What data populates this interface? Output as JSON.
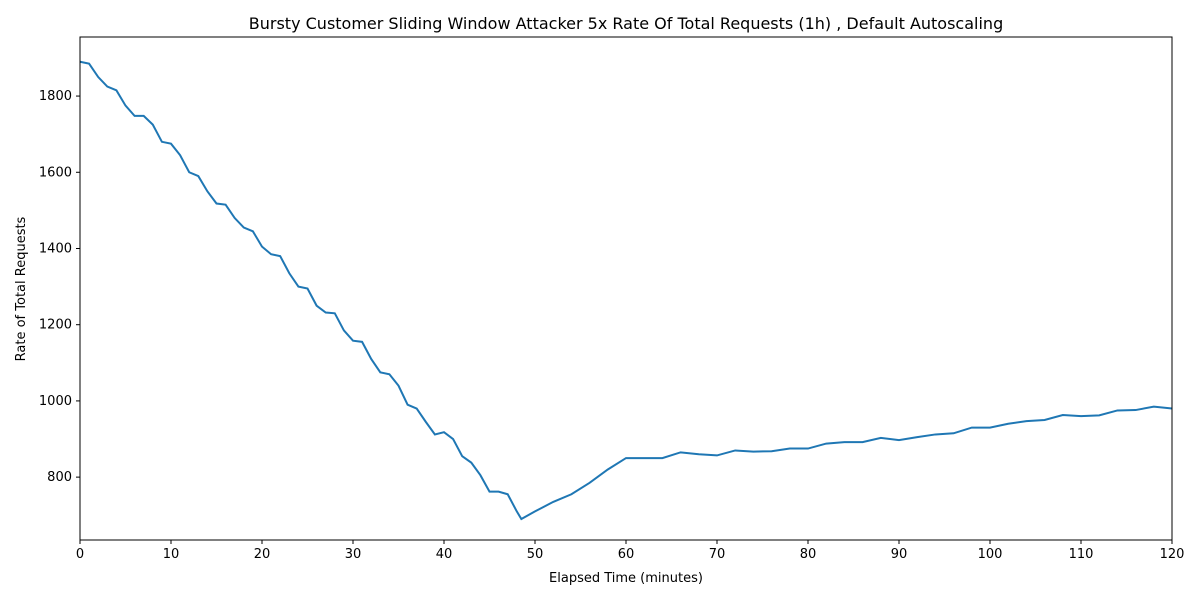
{
  "chart_data": {
    "type": "line",
    "title": "Bursty Customer Sliding Window Attacker 5x Rate Of Total Requests (1h) , Default Autoscaling",
    "x_label": "Elapsed Time (minutes)",
    "y_label": "Rate of Total Requests",
    "x": [
      0,
      1,
      2,
      3,
      4,
      5,
      6,
      7,
      8,
      9,
      10,
      11,
      12,
      13,
      14,
      15,
      16,
      17,
      18,
      19,
      20,
      21,
      22,
      23,
      24,
      25,
      26,
      27,
      28,
      29,
      30,
      31,
      32,
      33,
      34,
      35,
      36,
      37,
      38,
      39,
      40,
      41,
      42,
      43,
      44,
      45,
      46,
      47,
      48,
      48.5,
      50,
      52,
      54,
      56,
      58,
      60,
      62,
      64,
      66,
      68,
      70,
      72,
      74,
      76,
      78,
      80,
      82,
      84,
      86,
      88,
      90,
      92,
      94,
      96,
      98,
      100,
      102,
      104,
      106,
      108,
      110,
      112,
      114,
      116,
      118,
      120
    ],
    "series": [
      {
        "name": "Rate of Total Requests",
        "color": "#1f77b4",
        "values": [
          1890,
          1885,
          1850,
          1825,
          1815,
          1775,
          1748,
          1748,
          1725,
          1680,
          1675,
          1645,
          1600,
          1590,
          1550,
          1518,
          1515,
          1480,
          1455,
          1445,
          1405,
          1385,
          1380,
          1335,
          1300,
          1295,
          1250,
          1232,
          1230,
          1185,
          1158,
          1155,
          1110,
          1075,
          1070,
          1040,
          990,
          980,
          945,
          912,
          918,
          900,
          855,
          838,
          805,
          762,
          762,
          755,
          710,
          690,
          710,
          735,
          755,
          785,
          820,
          850,
          850,
          850,
          865,
          860,
          857,
          870,
          867,
          868,
          875,
          875,
          888,
          892,
          892,
          903,
          897,
          905,
          912,
          915,
          930,
          930,
          940,
          947,
          950,
          963,
          960,
          962,
          975,
          976,
          985,
          980
        ]
      }
    ],
    "xlim": [
      0,
      120
    ],
    "xticks": [
      0,
      10,
      20,
      30,
      40,
      50,
      60,
      70,
      80,
      90,
      100,
      110,
      120
    ],
    "ylim": [
      635,
      1955
    ],
    "yticks": [
      800,
      1000,
      1200,
      1400,
      1600,
      1800
    ]
  }
}
